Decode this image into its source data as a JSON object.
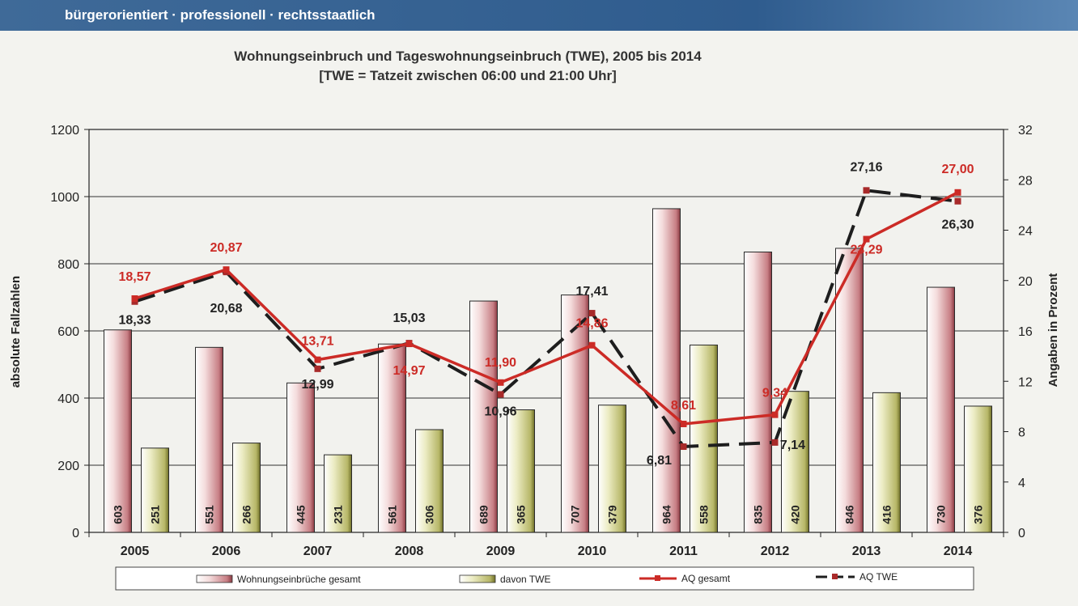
{
  "header": {
    "tagline": "bürgerorientiert · professionell · rechtsstaatlich"
  },
  "colors": {
    "gesamt": "#cc2b26",
    "twe": "#1e1e1e",
    "header": "#2f5c8e"
  },
  "chart_data": {
    "type": "bar",
    "title_line1": "Wohnungseinbruch und Tageswohnungseinbruch (TWE), 2005 bis 2014",
    "title_line2": "[TWE = Tatzeit zwischen 06:00 und 21:00 Uhr]",
    "categories": [
      "2005",
      "2006",
      "2007",
      "2008",
      "2009",
      "2010",
      "2011",
      "2012",
      "2013",
      "2014"
    ],
    "y_left": {
      "label": "absolute Fallzahlen",
      "range": [
        0,
        1200
      ],
      "ticks": [
        "0",
        "200",
        "400",
        "600",
        "800",
        "1000",
        "1200"
      ]
    },
    "y_right": {
      "label": "Angaben in Prozent",
      "range": [
        0,
        32
      ],
      "ticks": [
        "0",
        "4",
        "8",
        "12",
        "16",
        "20",
        "24",
        "28",
        "32"
      ]
    },
    "grid": true,
    "legend_position": "bottom",
    "series": [
      {
        "name": "Wohnungseinbrüche gesamt",
        "kind": "bar",
        "axis": "left",
        "values": [
          603,
          551,
          445,
          561,
          689,
          707,
          964,
          835,
          846,
          730
        ],
        "labels": [
          "603",
          "551",
          "445",
          "561",
          "689",
          "707",
          "964",
          "835",
          "846",
          "730"
        ]
      },
      {
        "name": "davon TWE",
        "kind": "bar",
        "axis": "left",
        "values": [
          251,
          266,
          231,
          306,
          365,
          379,
          558,
          420,
          416,
          376
        ],
        "labels": [
          "251",
          "266",
          "231",
          "306",
          "365",
          "379",
          "558",
          "420",
          "416",
          "376"
        ]
      },
      {
        "name": "AQ gesamt",
        "kind": "line",
        "axis": "right",
        "values": [
          18.57,
          20.87,
          13.71,
          14.97,
          11.9,
          14.86,
          8.61,
          9.34,
          23.29,
          27.0
        ],
        "labels": [
          "18,57",
          "20,87",
          "13,71",
          "14,97",
          "11,90",
          "14,86",
          "8,61",
          "9,34",
          "23,29",
          "27,00"
        ]
      },
      {
        "name": "AQ TWE",
        "kind": "line",
        "axis": "right",
        "values": [
          18.33,
          20.68,
          12.99,
          15.03,
          10.96,
          17.41,
          6.81,
          7.14,
          27.16,
          26.3
        ],
        "labels": [
          "18,33",
          "20,68",
          "12,99",
          "15,03",
          "10,96",
          "17,41",
          "6,81",
          "7,14",
          "27,16",
          "26,30"
        ]
      }
    ]
  }
}
